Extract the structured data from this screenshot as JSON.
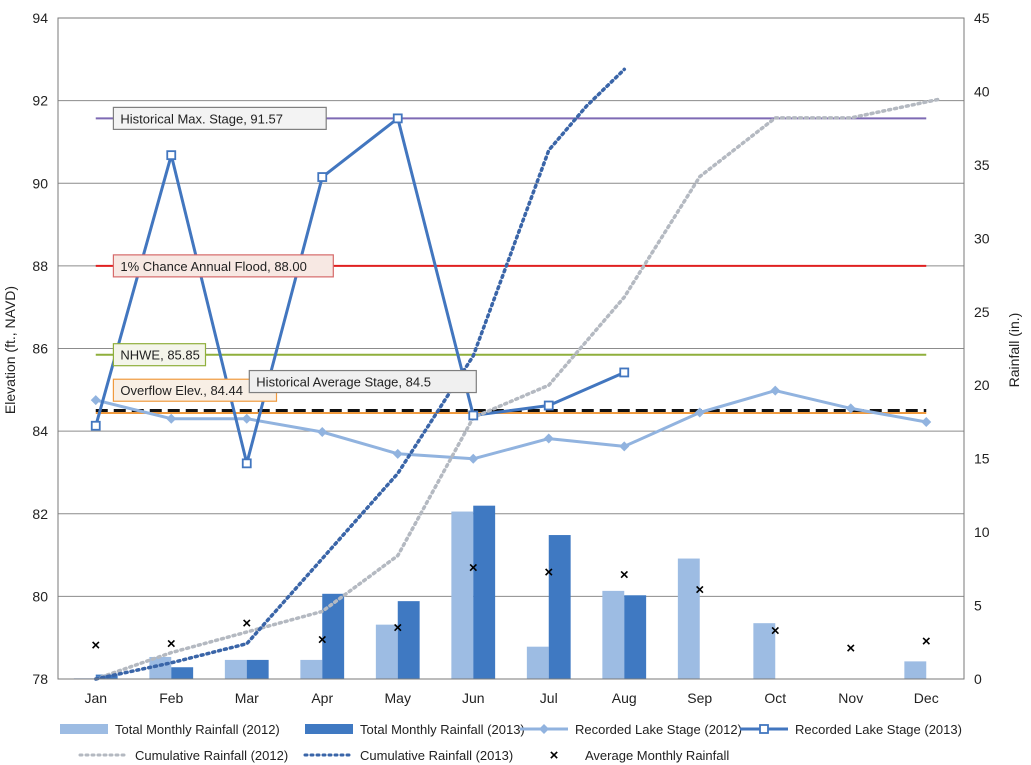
{
  "chart_data": {
    "type": "bar",
    "categories": [
      "Jan",
      "Feb",
      "Mar",
      "Apr",
      "May",
      "Jun",
      "Jul",
      "Aug",
      "Sep",
      "Oct",
      "Nov",
      "Dec"
    ],
    "ylabel": "Elevation (ft., NAVD)",
    "y2label": "Rainfall (in.)",
    "ylim": [
      78,
      94
    ],
    "y_ticks": [
      "78",
      "80",
      "82",
      "84",
      "86",
      "88",
      "90",
      "92",
      "94"
    ],
    "y2lim": [
      0,
      45
    ],
    "y2_ticks": [
      "0",
      "5",
      "10",
      "15",
      "20",
      "25",
      "30",
      "35",
      "40",
      "45"
    ],
    "grid": true,
    "legend_position": "bottom",
    "series": [
      {
        "name": "Total Monthly Rainfall (2012)",
        "kind": "bar",
        "axis": "right",
        "color": "#9dbce3",
        "values": [
          0.05,
          1.5,
          1.3,
          1.3,
          3.7,
          11.4,
          2.2,
          6.0,
          8.2,
          3.8,
          null,
          1.2
        ]
      },
      {
        "name": "Total Monthly Rainfall (2013)",
        "kind": "bar",
        "axis": "right",
        "color": "#3f79c2",
        "values": [
          0.3,
          0.8,
          1.3,
          5.8,
          5.3,
          11.8,
          9.8,
          5.7,
          null,
          null,
          null,
          null
        ]
      },
      {
        "name": "Recorded Lake Stage (2012)",
        "kind": "line",
        "axis": "left",
        "color": "#91b3df",
        "marker": "diamond",
        "values": [
          84.75,
          84.3,
          84.3,
          83.98,
          83.45,
          83.33,
          83.82,
          83.63,
          84.45,
          84.98,
          84.55,
          84.22
        ]
      },
      {
        "name": "Recorded Lake Stage (2013)",
        "kind": "line",
        "axis": "left",
        "color": "#4276bf",
        "marker": "square",
        "values": [
          84.13,
          90.68,
          83.22,
          90.15,
          91.57,
          84.38,
          84.62,
          85.42,
          null,
          null,
          null,
          null
        ]
      },
      {
        "name": "Cumulative Rainfall (2012)",
        "kind": "line",
        "axis": "right",
        "color": "#b4b9c1",
        "dash": "dotted",
        "x": [
          0,
          1,
          2,
          3,
          4,
          5,
          6,
          7,
          8,
          9,
          10,
          11.2
        ],
        "values": [
          0,
          1.8,
          3.2,
          4.6,
          8.4,
          17.8,
          20.0,
          26.0,
          34.2,
          38.2,
          38.2,
          39.5
        ]
      },
      {
        "name": "Cumulative Rainfall (2013)",
        "kind": "line",
        "axis": "right",
        "color": "#3a65a8",
        "dash": "dotted",
        "x": [
          0,
          1,
          2,
          3,
          4,
          5,
          6,
          6.5,
          7.0
        ],
        "values": [
          0,
          1.1,
          2.4,
          8.2,
          14.0,
          22.0,
          36.0,
          39.0,
          41.5
        ]
      },
      {
        "name": "Average Monthly Rainfall",
        "kind": "scatter",
        "axis": "right",
        "color": "#000000",
        "marker": "x",
        "values": [
          2.3,
          2.4,
          3.8,
          2.7,
          3.5,
          7.6,
          7.3,
          7.1,
          6.1,
          3.3,
          2.1,
          2.6
        ]
      }
    ],
    "reference_lines": [
      {
        "label": "Historical Max. Stage, 91.57",
        "value": 91.57,
        "color": "#7e6ab4",
        "box_border": "#7f7f7f",
        "box_fill": "#f3f3f3",
        "label_at": 0.3
      },
      {
        "label": "1% Chance Annual Flood, 88.00",
        "value": 88.0,
        "color": "#e02020",
        "box_border": "#d66a6a",
        "box_fill": "#f7e8e3",
        "label_at": 0.3
      },
      {
        "label": "NHWE, 85.85",
        "value": 85.85,
        "color": "#8faf3c",
        "box_border": "#8faf3c",
        "box_fill": "#f4f5ea",
        "label_at": 0.3
      },
      {
        "label": "Overflow Elev., 84.44",
        "value": 84.44,
        "color": "#f09a3e",
        "box_border": "#f09a3e",
        "box_fill": "#f8efe5",
        "label_at": 0.3,
        "label_dy": 0.55
      },
      {
        "label": "Historical Average Stage, 84.5",
        "value": 84.5,
        "color": "#111111",
        "dash": "dashed",
        "box_border": "#7f7f7f",
        "box_fill": "#f0f0f0",
        "label_at": 2.1,
        "label_dy": 0.7
      }
    ]
  }
}
